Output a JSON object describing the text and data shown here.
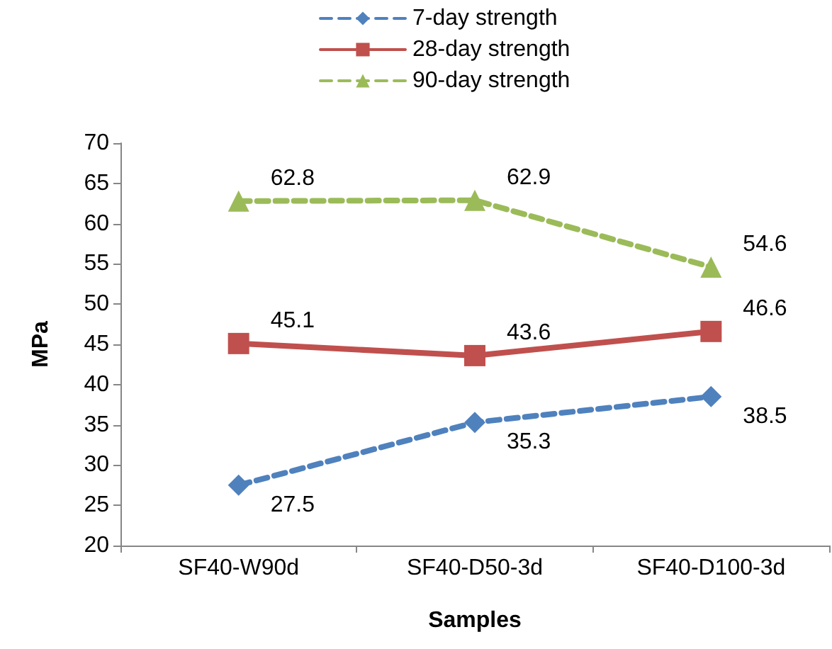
{
  "chart_data": {
    "type": "line",
    "xlabel": "Samples",
    "ylabel": "MPa",
    "categories": [
      "SF40-W90d",
      "SF40-D50-3d",
      "SF40-D100-3d"
    ],
    "series": [
      {
        "name": "7-day strength",
        "color": "#4f81bd",
        "values": [
          27.5,
          35.3,
          38.5
        ],
        "marker": "diamond",
        "line_style": "dashed"
      },
      {
        "name": "28-day strength",
        "color": "#c0504d",
        "values": [
          45.1,
          43.6,
          46.6
        ],
        "marker": "square",
        "line_style": "solid"
      },
      {
        "name": "90-day strength",
        "color": "#9bbb59",
        "values": [
          62.8,
          62.9,
          54.6
        ],
        "marker": "triangle",
        "line_style": "dashed"
      }
    ],
    "ylim": [
      20,
      70
    ],
    "yticks": [
      20,
      25,
      30,
      35,
      40,
      45,
      50,
      55,
      60,
      65,
      70
    ],
    "grid": false,
    "legend": "top",
    "data_labels": true
  }
}
